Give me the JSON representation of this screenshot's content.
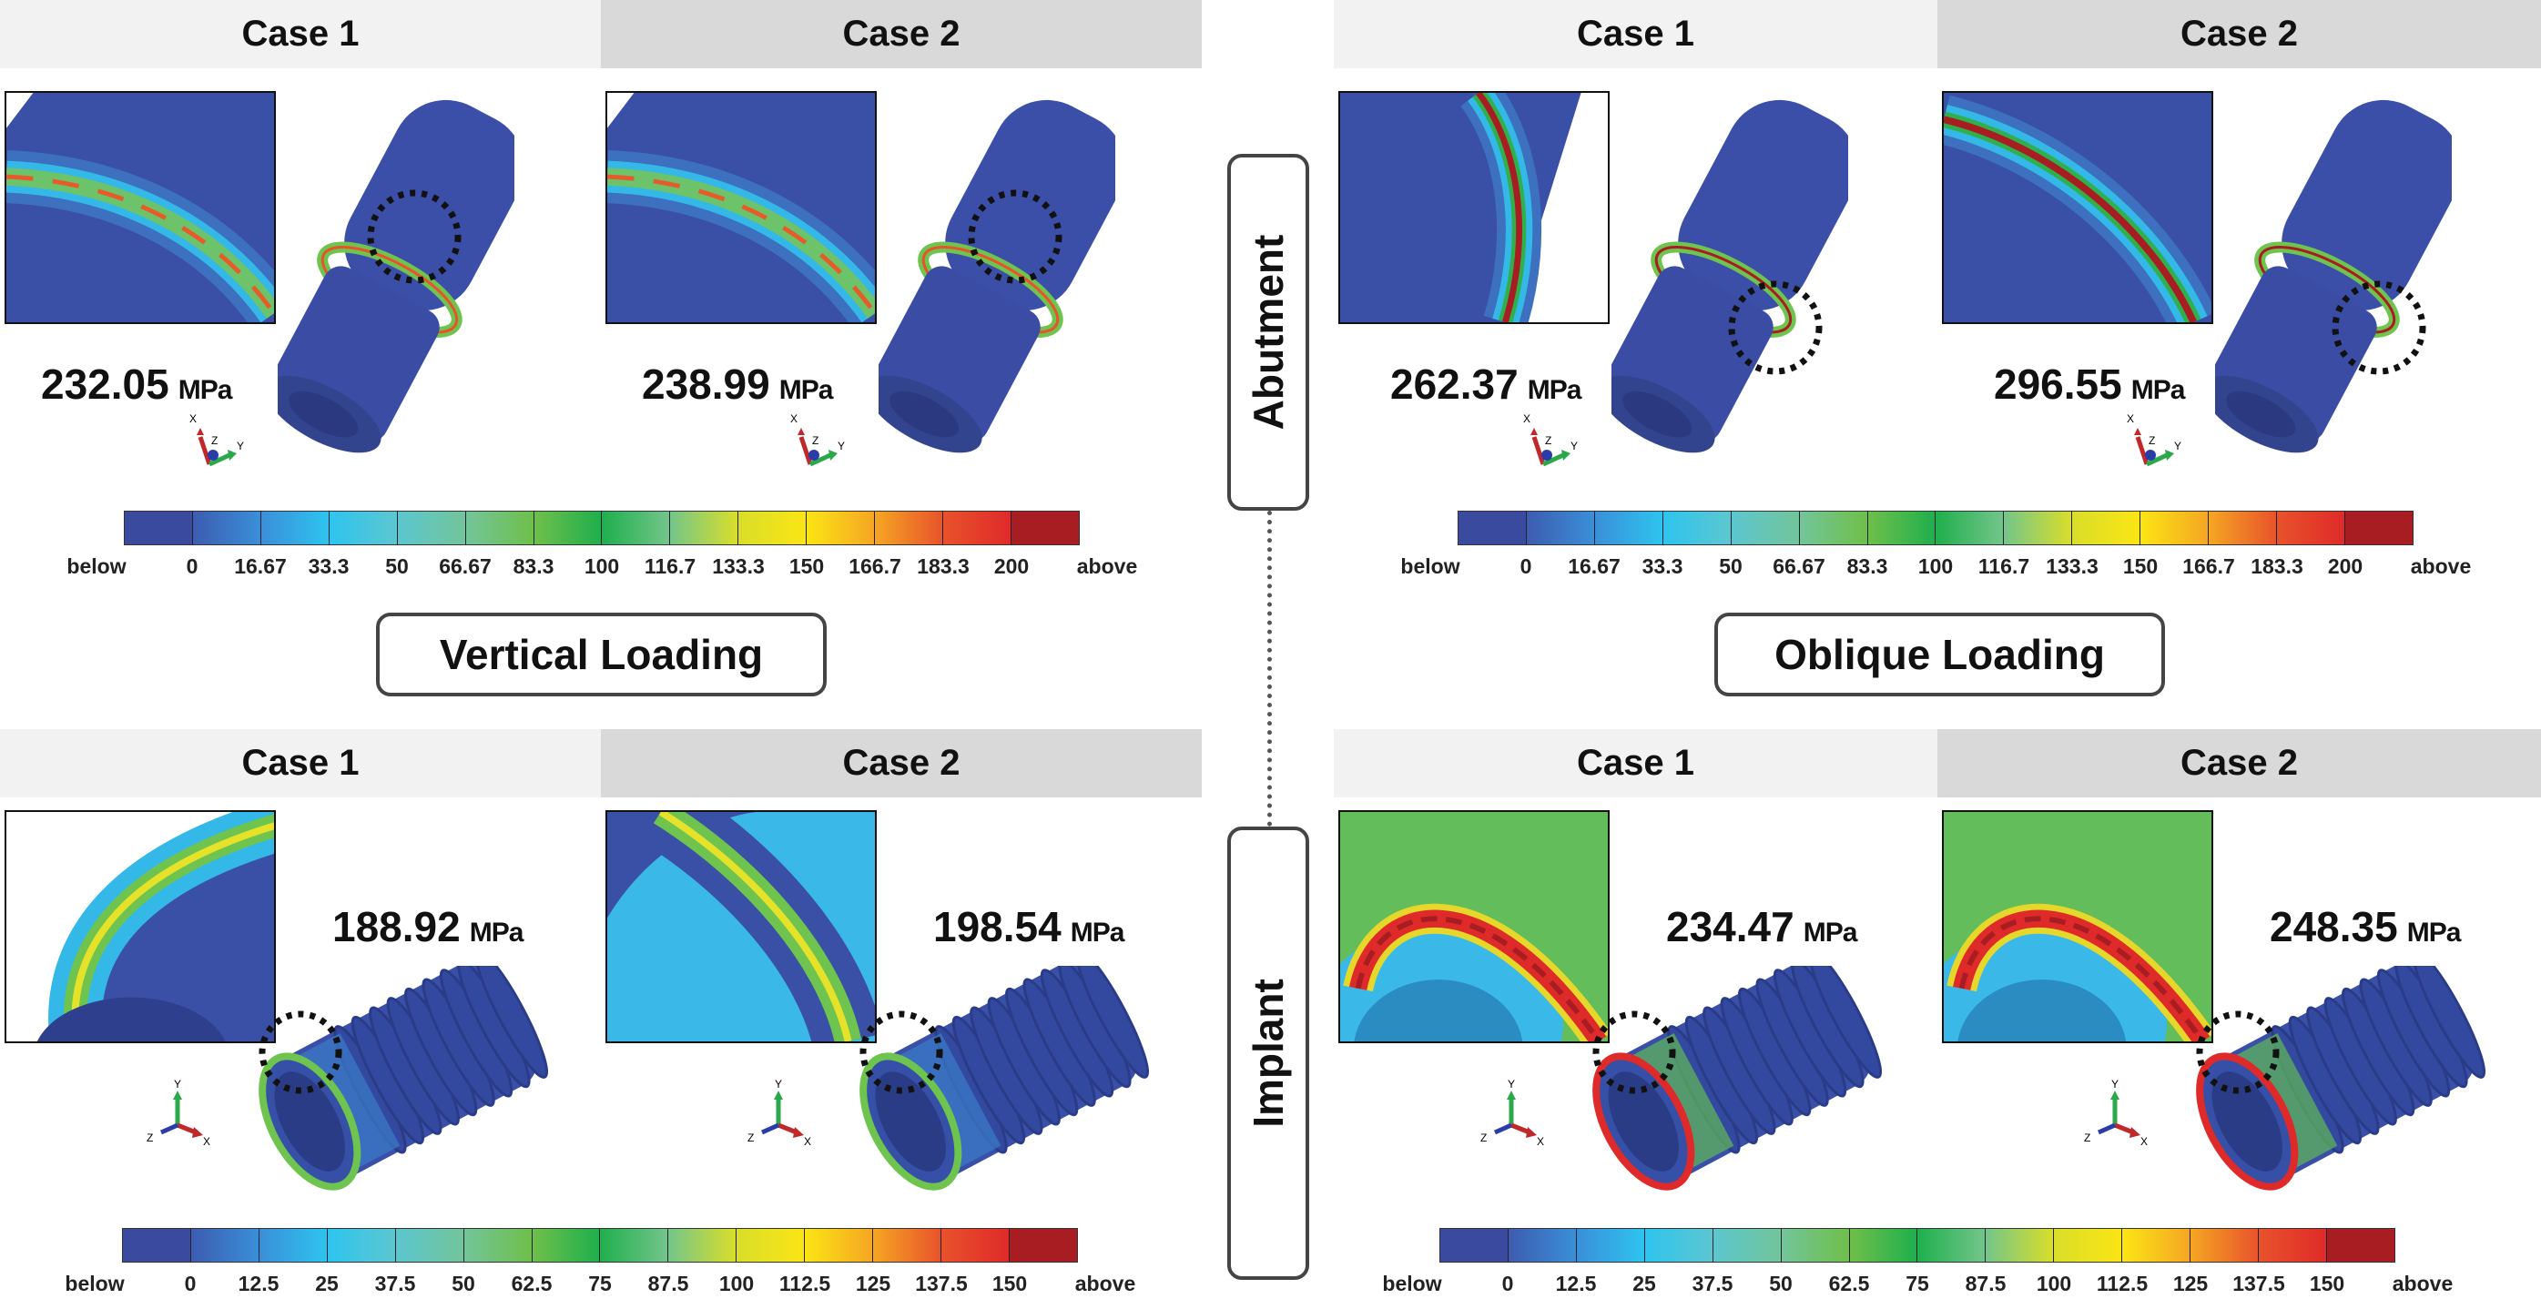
{
  "figure": {
    "side_labels": {
      "abutment": "Abutment",
      "implant": "Implant"
    },
    "loading_labels": {
      "vertical": "Vertical Loading",
      "oblique": "Oblique Loading"
    },
    "unit": "MPa",
    "quadrants": [
      {
        "id": "abutment-vertical",
        "component": "abutment",
        "cases": [
          {
            "label": "Case 1",
            "value": "232.05"
          },
          {
            "label": "Case 2",
            "value": "238.99"
          }
        ],
        "triad": [
          "X",
          "Z",
          "Y"
        ],
        "colorbar": "abutment"
      },
      {
        "id": "abutment-oblique",
        "component": "abutment",
        "cases": [
          {
            "label": "Case 1",
            "value": "262.37"
          },
          {
            "label": "Case 2",
            "value": "296.55"
          }
        ],
        "triad": [
          "X",
          "Z",
          "Y"
        ],
        "colorbar": "abutment"
      },
      {
        "id": "implant-vertical",
        "component": "implant",
        "cases": [
          {
            "label": "Case 1",
            "value": "188.92"
          },
          {
            "label": "Case 2",
            "value": "198.54"
          }
        ],
        "triad": [
          "Y",
          "Z",
          "X"
        ],
        "colorbar": "implant"
      },
      {
        "id": "implant-oblique",
        "component": "implant",
        "cases": [
          {
            "label": "Case 1",
            "value": "234.47"
          },
          {
            "label": "Case 2",
            "value": "248.35"
          }
        ],
        "triad": [
          "Y",
          "Z",
          "X"
        ],
        "colorbar": "implant"
      }
    ],
    "colorbars": {
      "abutment": {
        "labels": [
          "below",
          "0",
          "16.67",
          "33.3",
          "50",
          "66.67",
          "83.3",
          "100",
          "116.7",
          "133.3",
          "150",
          "166.7",
          "183.3",
          "200",
          "above"
        ]
      },
      "implant": {
        "labels": [
          "below",
          "0",
          "12.5",
          "25",
          "37.5",
          "50",
          "62.5",
          "75",
          "87.5",
          "100",
          "112.5",
          "125",
          "137.5",
          "150",
          "above"
        ]
      }
    },
    "colormap": [
      "#3a4a9e",
      "#3d5cb0",
      "#3a8fd8",
      "#2ec4ef",
      "#5cc6cf",
      "#72c59a",
      "#6fbf4a",
      "#1faf4d",
      "#73c58a",
      "#d9de2a",
      "#fbe514",
      "#f5a623",
      "#e8532b",
      "#df2a2a",
      "#a81d22"
    ]
  }
}
